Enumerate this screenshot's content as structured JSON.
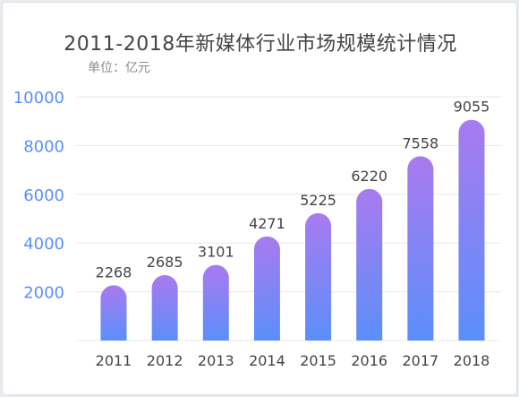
{
  "chart_data": {
    "type": "bar",
    "title": "2011-2018年新媒体行业市场规模统计情况",
    "unit_label": "单位：亿元",
    "categories": [
      "2011",
      "2012",
      "2013",
      "2014",
      "2015",
      "2016",
      "2017",
      "2018"
    ],
    "values": [
      2268,
      2685,
      3101,
      4271,
      5225,
      6220,
      7558,
      9055
    ],
    "data_labels": [
      "2268",
      "2685",
      "3101",
      "4271",
      "5225",
      "6220",
      "7558",
      "9055"
    ],
    "y_ticks": [
      "2000",
      "4000",
      "6000",
      "8000",
      "10000"
    ],
    "ylim": [
      0,
      10000
    ],
    "grid": true,
    "legend": "none",
    "colors": {
      "bar_top": "#a97af0",
      "bar_bottom": "#5b8ff9",
      "y_tick": "#5b8ff9",
      "grid": "#e8e8e8"
    }
  }
}
